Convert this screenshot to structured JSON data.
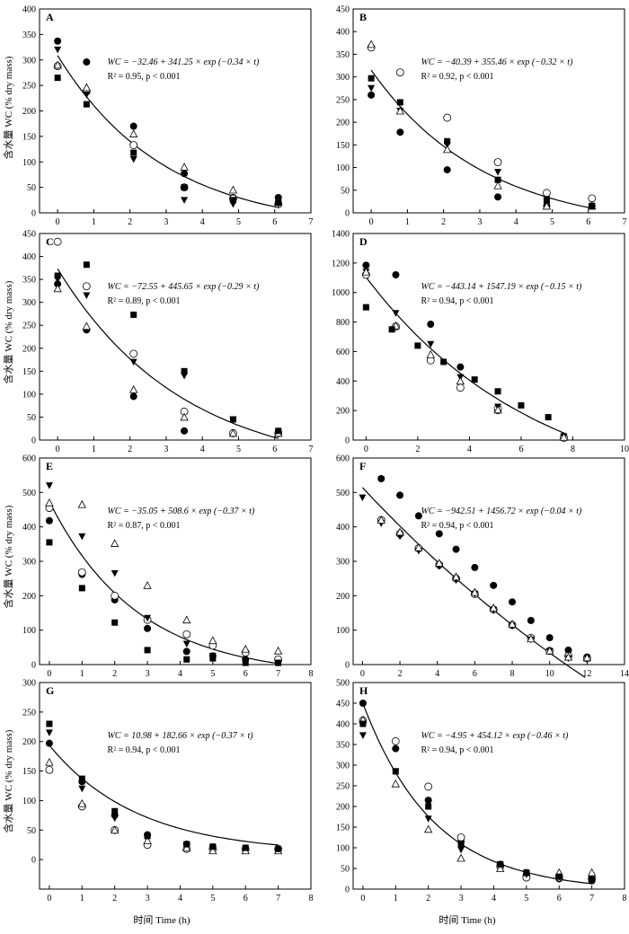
{
  "figure": {
    "y_axis_title": "含水量 WC (% dry mass)",
    "x_axis_title": "时间 Time (h)"
  },
  "legend_markers": [
    "filled-circle",
    "open-circle",
    "filled-triangle-down",
    "open-triangle-up",
    "filled-square"
  ],
  "chart_data": [
    {
      "type": "scatter",
      "panel": "A",
      "xlim": [
        -0.5,
        7
      ],
      "ylim": [
        0,
        400
      ],
      "xticks": [
        0,
        1,
        2,
        3,
        4,
        5,
        6,
        7
      ],
      "yticks": [
        0,
        50,
        100,
        150,
        200,
        250,
        300,
        350,
        400
      ],
      "show_ytitle": true,
      "show_xtitle": false,
      "equation": "WC = −32.46 + 341.25 × exp (−0.34 × t)",
      "stats": "R² = 0.95, p < 0.001",
      "fit": {
        "a": -32.46,
        "b": 341.25,
        "k": -0.34,
        "x0": 0,
        "x1": 6.1
      },
      "series": [
        {
          "marker": "filled-circle",
          "x": [
            0,
            0.8,
            2.1,
            3.5,
            4.85,
            6.1
          ],
          "y": [
            337,
            296,
            170,
            77,
            30,
            30
          ]
        },
        {
          "marker": "open-circle",
          "x": [
            0,
            0.8,
            2.1,
            3.5,
            4.85,
            6.1
          ],
          "y": [
            288,
            238,
            133,
            50,
            28,
            17
          ]
        },
        {
          "marker": "filled-triangle-down",
          "x": [
            0,
            0.8,
            2.1,
            3.5,
            4.85,
            6.1
          ],
          "y": [
            320,
            232,
            105,
            25,
            17,
            17
          ]
        },
        {
          "marker": "open-triangle-up",
          "x": [
            0,
            0.8,
            2.1,
            3.5,
            4.85,
            6.1
          ],
          "y": [
            290,
            246,
            155,
            90,
            45,
            22
          ]
        },
        {
          "marker": "filled-square",
          "x": [
            0,
            0.8,
            2.1,
            3.5,
            4.85,
            6.1
          ],
          "y": [
            265,
            213,
            118,
            50,
            25,
            20
          ]
        }
      ]
    },
    {
      "type": "scatter",
      "panel": "B",
      "xlim": [
        -0.5,
        7
      ],
      "ylim": [
        0,
        450
      ],
      "xticks": [
        0,
        1,
        2,
        3,
        4,
        5,
        6,
        7
      ],
      "yticks": [
        0,
        50,
        100,
        150,
        200,
        250,
        300,
        350,
        400,
        450
      ],
      "show_ytitle": false,
      "show_xtitle": false,
      "equation": "WC = −40.39 + 355.46 × exp (−0.32 × t)",
      "stats": "R² = 0.92, p < 0.001",
      "fit": {
        "a": -40.39,
        "b": 355.46,
        "k": -0.32,
        "x0": 0,
        "x1": 6.1
      },
      "series": [
        {
          "marker": "filled-circle",
          "x": [
            0,
            0.8,
            2.1,
            3.5,
            4.85,
            6.1
          ],
          "y": [
            260,
            178,
            95,
            35,
            15,
            15
          ]
        },
        {
          "marker": "open-circle",
          "x": [
            0,
            0.8,
            2.1,
            3.5,
            4.85,
            6.1
          ],
          "y": [
            365,
            310,
            210,
            112,
            44,
            32
          ]
        },
        {
          "marker": "filled-triangle-down",
          "x": [
            0,
            0.8,
            2.1,
            3.5,
            4.85,
            6.1
          ],
          "y": [
            275,
            225,
            150,
            90,
            30,
            15
          ]
        },
        {
          "marker": "open-triangle-up",
          "x": [
            0,
            0.8,
            2.1,
            3.5,
            4.85,
            6.1
          ],
          "y": [
            372,
            225,
            140,
            60,
            15,
            15
          ]
        },
        {
          "marker": "filled-square",
          "x": [
            0,
            0.8,
            2.1,
            3.5,
            4.85,
            6.1
          ],
          "y": [
            297,
            244,
            158,
            73,
            27,
            15
          ]
        }
      ]
    },
    {
      "type": "scatter",
      "panel": "C",
      "xlim": [
        -0.5,
        7
      ],
      "ylim": [
        0,
        450
      ],
      "xticks": [
        0,
        1,
        2,
        3,
        4,
        5,
        6,
        7
      ],
      "yticks": [
        0,
        50,
        100,
        150,
        200,
        250,
        300,
        350,
        400,
        450
      ],
      "show_ytitle": true,
      "show_xtitle": false,
      "equation": "WC = −72.55 + 445.65 × exp (−0.29 × t)",
      "stats": "R² = 0.89, p < 0.001",
      "fit": {
        "a": -72.55,
        "b": 445.65,
        "k": -0.29,
        "x0": 0,
        "x1": 6.1
      },
      "series": [
        {
          "marker": "filled-circle",
          "x": [
            0,
            0.8,
            2.1,
            3.5,
            4.85,
            6.1
          ],
          "y": [
            340,
            240,
            95,
            20,
            15,
            15
          ]
        },
        {
          "marker": "open-circle",
          "x": [
            0,
            0.8,
            2.1,
            3.5,
            4.85,
            6.1
          ],
          "y": [
            432,
            335,
            188,
            62,
            15,
            15
          ]
        },
        {
          "marker": "filled-triangle-down",
          "x": [
            0,
            0.8,
            2.1,
            3.5,
            4.85,
            6.1
          ],
          "y": [
            350,
            315,
            170,
            140,
            45,
            15
          ]
        },
        {
          "marker": "open-triangle-up",
          "x": [
            0,
            0.8,
            2.1,
            3.5,
            4.85,
            6.1
          ],
          "y": [
            330,
            248,
            110,
            50,
            15,
            15
          ]
        },
        {
          "marker": "filled-square",
          "x": [
            0,
            0.8,
            2.1,
            3.5,
            4.85,
            6.1
          ],
          "y": [
            358,
            382,
            273,
            150,
            45,
            20
          ]
        }
      ]
    },
    {
      "type": "scatter",
      "panel": "D",
      "xlim": [
        -0.5,
        10
      ],
      "ylim": [
        0,
        1400
      ],
      "xticks": [
        0,
        2,
        4,
        6,
        8,
        10
      ],
      "yticks": [
        0,
        200,
        400,
        600,
        800,
        1000,
        1200,
        1400
      ],
      "show_ytitle": false,
      "show_xtitle": false,
      "equation": "WC = −443.14 + 1547.19 × exp (−0.15 × t)",
      "stats": "R² = 0.94, p < 0.001",
      "fit": {
        "a": -443.14,
        "b": 1547.19,
        "k": -0.15,
        "x0": 0,
        "x1": 7.7
      },
      "series": [
        {
          "marker": "filled-circle",
          "x": [
            0,
            1.15,
            2.5,
            3.65,
            5.1,
            7.65
          ],
          "y": [
            1185,
            1120,
            785,
            495,
            200,
            25
          ]
        },
        {
          "marker": "open-circle",
          "x": [
            0,
            1.15,
            2.5,
            3.65,
            5.1,
            7.65
          ],
          "y": [
            1120,
            770,
            540,
            355,
            215,
            15
          ]
        },
        {
          "marker": "filled-triangle-down",
          "x": [
            0,
            1.15,
            2.5,
            3.65,
            5.1,
            7.65
          ],
          "y": [
            1140,
            860,
            650,
            425,
            225,
            25
          ]
        },
        {
          "marker": "open-triangle-up",
          "x": [
            0,
            1.15,
            2.5,
            3.65,
            5.1,
            7.65
          ],
          "y": [
            1140,
            775,
            580,
            400,
            205,
            20
          ]
        },
        {
          "marker": "filled-square",
          "x": [
            0,
            1,
            2,
            3,
            4.2,
            5.1,
            6,
            7.05
          ],
          "y": [
            900,
            750,
            640,
            530,
            410,
            330,
            235,
            155
          ]
        }
      ]
    },
    {
      "type": "scatter",
      "panel": "E",
      "xlim": [
        -0.3,
        8
      ],
      "ylim": [
        0,
        600
      ],
      "xticks": [
        0,
        1,
        2,
        3,
        4,
        5,
        6,
        7,
        8
      ],
      "yticks": [
        0,
        100,
        200,
        300,
        400,
        500,
        600
      ],
      "show_ytitle": true,
      "show_xtitle": false,
      "equation": "WC = −35.05 + 508.6 × exp (−0.37 × t)",
      "stats": "R² = 0.87, p < 0.001",
      "fit": {
        "a": -35.05,
        "b": 508.6,
        "k": -0.37,
        "x0": 0,
        "x1": 7
      },
      "series": [
        {
          "marker": "filled-circle",
          "x": [
            0,
            1,
            2,
            3,
            4.2,
            5,
            6,
            7
          ],
          "y": [
            418,
            262,
            188,
            105,
            38,
            25,
            15,
            10
          ]
        },
        {
          "marker": "open-circle",
          "x": [
            0,
            1,
            2,
            3,
            4.2,
            5,
            6,
            7
          ],
          "y": [
            455,
            268,
            200,
            130,
            88,
            55,
            35,
            15
          ]
        },
        {
          "marker": "filled-triangle-down",
          "x": [
            0,
            1,
            2,
            3,
            4.2,
            5,
            6,
            7
          ],
          "y": [
            520,
            372,
            265,
            135,
            60,
            25,
            10,
            5
          ]
        },
        {
          "marker": "open-triangle-up",
          "x": [
            0,
            1,
            2,
            3,
            4.2,
            5,
            6,
            7
          ],
          "y": [
            470,
            465,
            352,
            230,
            130,
            70,
            45,
            40
          ]
        },
        {
          "marker": "filled-square",
          "x": [
            0,
            1,
            2,
            3,
            4.2,
            5,
            6,
            7
          ],
          "y": [
            355,
            222,
            122,
            42,
            15,
            18,
            5,
            5
          ]
        }
      ]
    },
    {
      "type": "scatter",
      "panel": "F",
      "xlim": [
        -0.5,
        14
      ],
      "ylim": [
        0,
        600
      ],
      "xticks": [
        0,
        2,
        4,
        6,
        8,
        10,
        12,
        14
      ],
      "yticks": [
        0,
        100,
        200,
        300,
        400,
        500,
        600
      ],
      "show_ytitle": false,
      "show_xtitle": false,
      "equation": "WC = −942.51 + 1456.72 × exp (−0.04 × t)",
      "stats": "R² = 0.94, p < 0.001",
      "fit": {
        "a": -942.51,
        "b": 1456.72,
        "k": -0.04,
        "x0": 0,
        "x1": 11.9
      },
      "series": [
        {
          "marker": "filled-circle",
          "x": [
            1,
            2,
            3,
            4.1,
            5,
            6,
            7,
            8,
            9,
            10,
            11,
            12
          ],
          "y": [
            540,
            492,
            432,
            380,
            335,
            282,
            230,
            182,
            128,
            78,
            42,
            22
          ]
        },
        {
          "marker": "open-circle",
          "x": [
            1,
            2,
            3,
            4.1,
            5,
            6,
            7,
            8,
            9,
            10,
            11,
            12
          ],
          "y": [
            420,
            380,
            338,
            290,
            250,
            205,
            160,
            115,
            78,
            40,
            25,
            18
          ]
        },
        {
          "marker": "filled-triangle-down",
          "x": [
            0,
            1,
            2,
            3,
            4.1,
            5,
            6,
            7,
            8,
            9,
            10,
            11,
            12
          ],
          "y": [
            485,
            410,
            372,
            330,
            285,
            245,
            205,
            158,
            112,
            72,
            38,
            18,
            18
          ]
        },
        {
          "marker": "open-triangle-up",
          "x": [
            1,
            2,
            3,
            4.1,
            5,
            6,
            7,
            8,
            9,
            10,
            11,
            12
          ],
          "y": [
            420,
            385,
            340,
            295,
            255,
            210,
            165,
            118,
            75,
            40,
            22,
            20
          ]
        }
      ]
    },
    {
      "type": "scatter",
      "panel": "G",
      "xlim": [
        -0.3,
        8
      ],
      "ylim": [
        -50,
        300
      ],
      "xticks": [
        0,
        1,
        2,
        3,
        4,
        5,
        6,
        7,
        8
      ],
      "yticks": [
        0,
        50,
        100,
        150,
        200,
        250,
        300
      ],
      "show_ytitle": true,
      "show_xtitle": false,
      "equation": "WC = 10.98 + 182.66 × exp (−0.37 × t)",
      "stats": "R² = 0.94, p < 0.001",
      "fit": {
        "a": 10.98,
        "b": 182.66,
        "k": -0.37,
        "x0": 0,
        "x1": 7
      },
      "series": [
        {
          "marker": "filled-circle",
          "x": [
            0,
            1,
            2,
            3,
            4.2,
            5,
            6,
            7
          ],
          "y": [
            197,
            132,
            75,
            42,
            26,
            20,
            18,
            18
          ]
        },
        {
          "marker": "open-circle",
          "x": [
            0,
            1,
            2,
            3,
            4.2,
            5,
            6,
            7
          ],
          "y": [
            152,
            90,
            50,
            25,
            18,
            18,
            18,
            18
          ]
        },
        {
          "marker": "filled-triangle-down",
          "x": [
            0,
            1,
            2,
            3,
            4.2,
            5,
            6,
            7
          ],
          "y": [
            215,
            120,
            70,
            35,
            24,
            19,
            15,
            15
          ]
        },
        {
          "marker": "open-triangle-up",
          "x": [
            0,
            1,
            2,
            3,
            4.2,
            5,
            6,
            7
          ],
          "y": [
            165,
            95,
            50,
            32,
            20,
            15,
            15,
            15
          ]
        },
        {
          "marker": "filled-square",
          "x": [
            0,
            1,
            2,
            3,
            4.2,
            5,
            6,
            7
          ],
          "y": [
            230,
            137,
            82,
            40,
            26,
            22,
            20,
            18
          ]
        }
      ]
    },
    {
      "type": "scatter",
      "panel": "H",
      "xlim": [
        -0.3,
        8
      ],
      "ylim": [
        0,
        500
      ],
      "xticks": [
        0,
        1,
        2,
        3,
        4,
        5,
        6,
        7,
        8
      ],
      "yticks": [
        0,
        50,
        100,
        150,
        200,
        250,
        300,
        350,
        400,
        450,
        500
      ],
      "show_ytitle": false,
      "show_xtitle": true,
      "equation": "WC = −4.95 + 454.12 × exp (−0.46 × t)",
      "stats": "R² = 0.94, p < 0.001",
      "fit": {
        "a": -4.95,
        "b": 454.12,
        "k": -0.46,
        "x0": 0,
        "x1": 7
      },
      "series": [
        {
          "marker": "filled-circle",
          "x": [
            0,
            1,
            2,
            3,
            4.2,
            5,
            6,
            7
          ],
          "y": [
            450,
            340,
            215,
            115,
            60,
            35,
            25,
            20
          ]
        },
        {
          "marker": "open-circle",
          "x": [
            0,
            1,
            2,
            3,
            4.2,
            5,
            6,
            7
          ],
          "y": [
            408,
            358,
            248,
            125,
            55,
            28,
            28,
            25
          ]
        },
        {
          "marker": "filled-triangle-down",
          "x": [
            0,
            1,
            2,
            3,
            4.2,
            5,
            6,
            7
          ],
          "y": [
            372,
            285,
            170,
            95,
            55,
            35,
            30,
            25
          ]
        },
        {
          "marker": "open-triangle-up",
          "x": [
            0,
            1,
            2,
            3,
            4.2,
            5,
            6,
            7
          ],
          "y": [
            410,
            255,
            145,
            75,
            50,
            40,
            40,
            40
          ]
        },
        {
          "marker": "filled-square",
          "x": [
            0,
            1,
            2,
            3,
            4.2,
            5,
            6,
            7
          ],
          "y": [
            400,
            285,
            200,
            110,
            60,
            40,
            30,
            25
          ]
        }
      ]
    }
  ]
}
